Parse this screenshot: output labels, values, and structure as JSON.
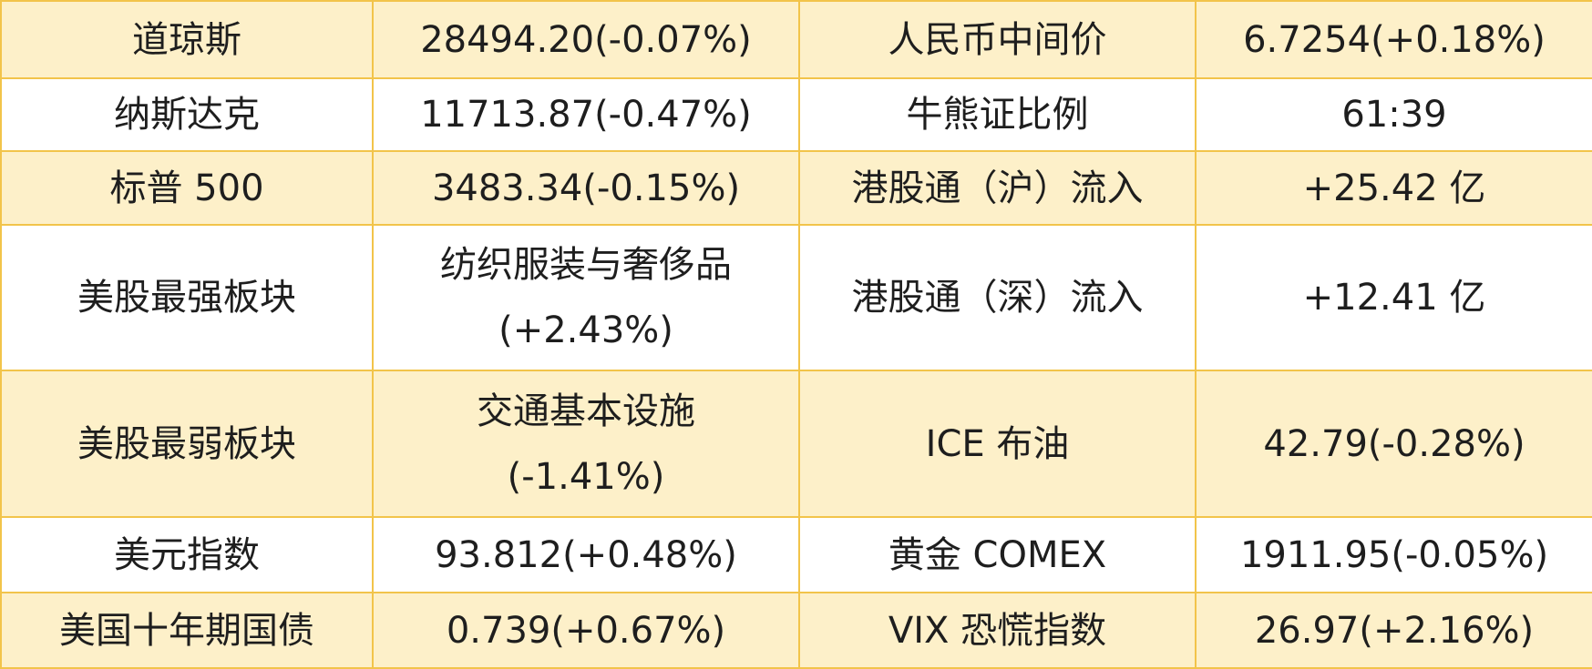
{
  "table": {
    "rows": [
      [
        "道琼斯",
        "28494.20(-0.07%)",
        "人民币中间价",
        "6.7254(+0.18%)"
      ],
      [
        "纳斯达克",
        "11713.87(-0.47%)",
        "牛熊证比例",
        "61:39"
      ],
      [
        "标普 500",
        "3483.34(-0.15%)",
        "港股通（沪）流入",
        "+25.42 亿"
      ],
      [
        "美股最强板块",
        [
          "纺织服装与奢侈品",
          "(+2.43%)"
        ],
        "港股通（深）流入",
        "+12.41 亿"
      ],
      [
        "美股最弱板块",
        [
          "交通基本设施",
          "(-1.41%)"
        ],
        "ICE 布油",
        "42.79(-0.28%)"
      ],
      [
        "美元指数",
        "93.812(+0.48%)",
        "黄金 COMEX",
        "1911.95(-0.05%)"
      ],
      [
        "美国十年期国债",
        "0.739(+0.67%)",
        "VIX 恐慌指数",
        "26.97(+2.16%)"
      ]
    ]
  }
}
